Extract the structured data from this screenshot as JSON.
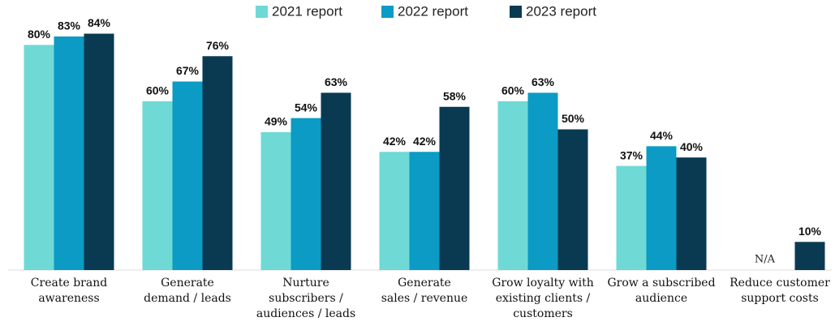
{
  "chart_data": {
    "type": "bar",
    "categories": [
      "Create brand\nawareness",
      "Generate\ndemand / leads",
      "Nurture\nsubscribers /\naudiences / leads",
      "Generate\nsales / revenue",
      "Grow loyalty with\nexisting clients /\ncustomers",
      "Grow a subscribed\naudience",
      "Reduce customer\nsupport costs"
    ],
    "series": [
      {
        "name": "2021 report",
        "color": "#6fd9d6",
        "values": [
          80,
          60,
          49,
          42,
          60,
          37,
          null
        ],
        "value_labels": [
          "80%",
          "60%",
          "49%",
          "42%",
          "60%",
          "37%",
          null
        ]
      },
      {
        "name": "2022 report",
        "color": "#0b9bc4",
        "values": [
          83,
          67,
          54,
          42,
          63,
          44,
          null
        ],
        "value_labels": [
          "83%",
          "67%",
          "54%",
          "42%",
          "63%",
          "44%",
          null
        ]
      },
      {
        "name": "2023 report",
        "color": "#093a52",
        "values": [
          84,
          76,
          63,
          58,
          50,
          40,
          10
        ],
        "value_labels": [
          "84%",
          "76%",
          "63%",
          "58%",
          "50%",
          "40%",
          "10%"
        ]
      }
    ],
    "missing_label": "N/A",
    "legend": "top"
  }
}
